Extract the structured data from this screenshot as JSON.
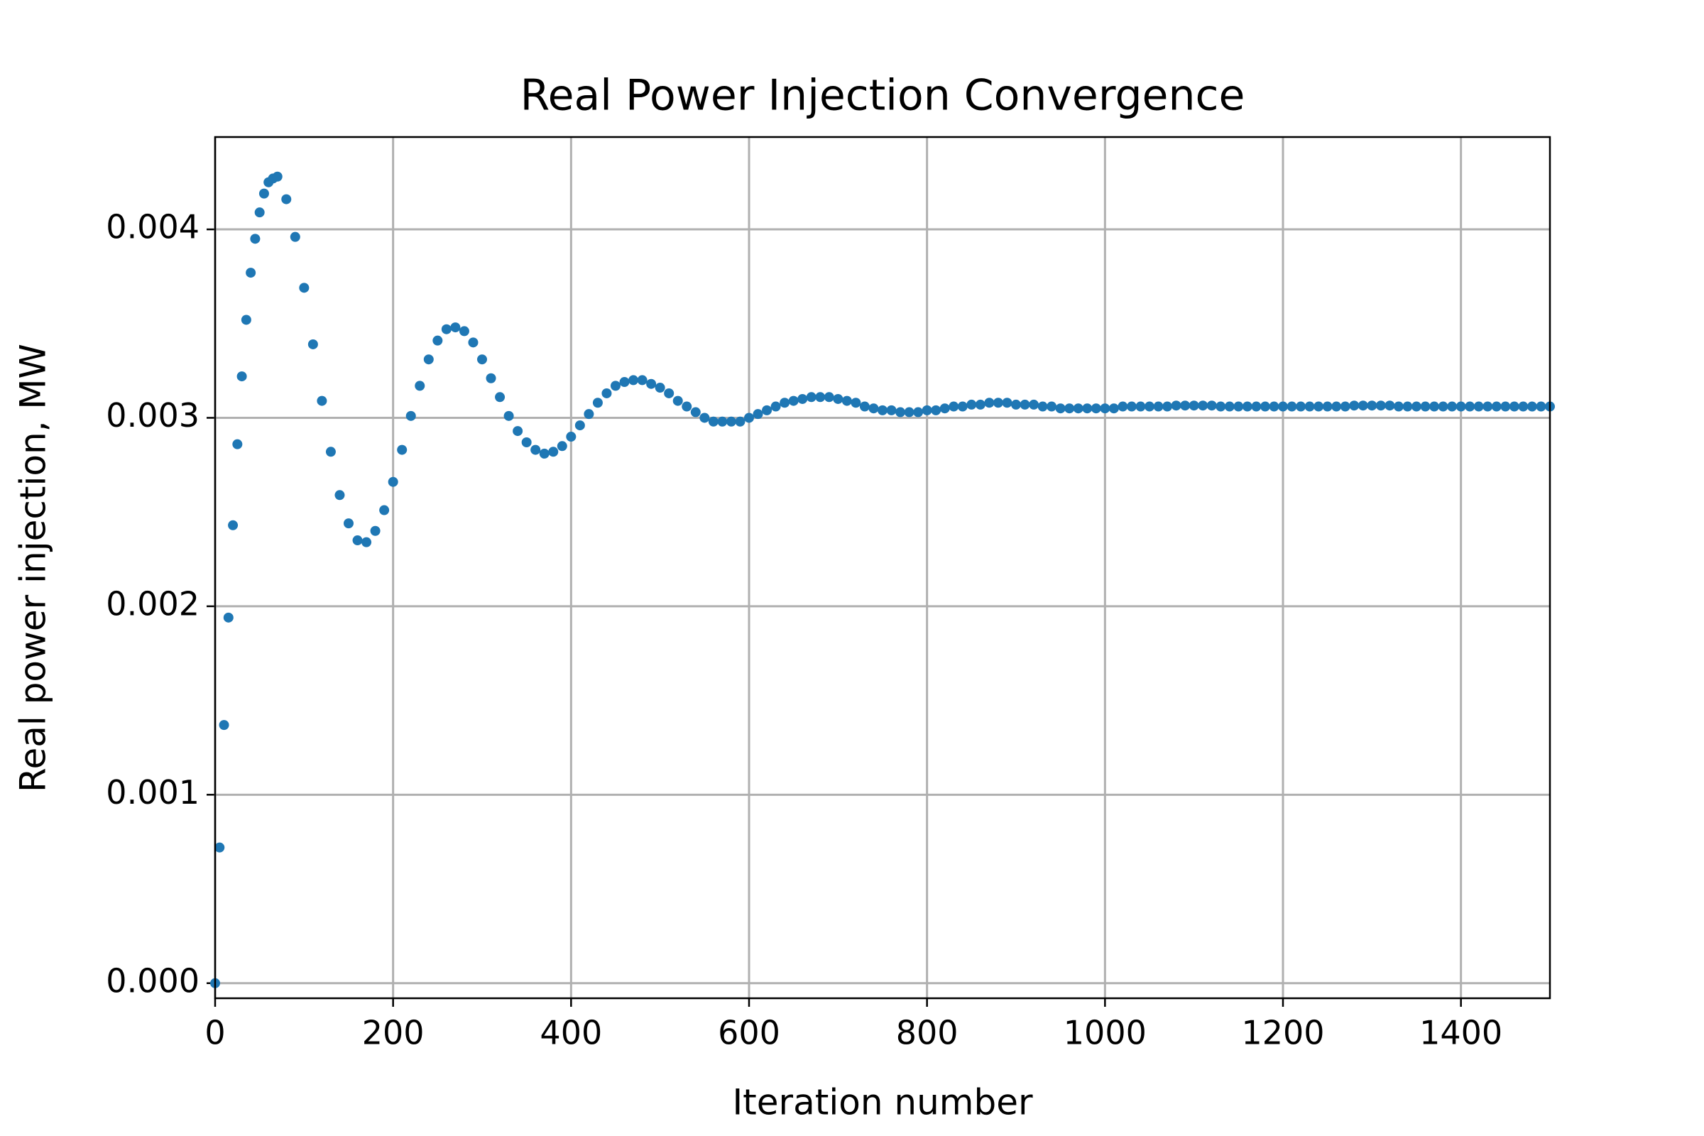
{
  "chart_data": {
    "type": "scatter",
    "title": "Real Power Injection Convergence",
    "x_label": "Iteration number",
    "y_label": "Real power injection, MW",
    "xlim": [
      0,
      1500
    ],
    "ylim": [
      -8e-05,
      0.00449
    ],
    "xticks": [
      0,
      200,
      400,
      600,
      800,
      1000,
      1200,
      1400
    ],
    "yticks": [
      {
        "value": 0,
        "label": "0.000"
      },
      0.001,
      0.002,
      0.003,
      0.004
    ],
    "grid": true,
    "series": [
      {
        "color": "#1f77b4",
        "x": [
          0,
          5,
          10,
          15,
          20,
          25,
          30,
          35,
          40,
          45,
          50,
          55,
          60,
          65,
          70,
          80,
          90,
          100,
          110,
          120,
          130,
          140,
          150,
          160,
          170,
          180,
          190,
          200,
          210,
          220,
          230,
          240,
          250,
          260,
          270,
          280,
          290,
          300,
          310,
          320,
          330,
          340,
          350,
          360,
          370,
          380,
          390,
          400,
          410,
          420,
          430,
          440,
          450,
          460,
          470,
          480,
          490,
          500,
          510,
          520,
          530,
          540,
          550,
          560,
          570,
          580,
          590,
          600,
          610,
          620,
          630,
          640,
          650,
          660,
          670,
          680,
          690,
          700,
          710,
          720,
          730,
          740,
          750,
          760,
          770,
          780,
          790,
          800,
          810,
          820,
          830,
          840,
          850,
          860,
          870,
          880,
          890,
          900,
          910,
          920,
          930,
          940,
          950,
          960,
          970,
          980,
          990,
          1000,
          1010,
          1020,
          1030,
          1040,
          1050,
          1060,
          1070,
          1080,
          1090,
          1100,
          1110,
          1120,
          1130,
          1140,
          1150,
          1160,
          1170,
          1180,
          1190,
          1200,
          1210,
          1220,
          1230,
          1240,
          1250,
          1260,
          1270,
          1280,
          1290,
          1300,
          1310,
          1320,
          1330,
          1340,
          1350,
          1360,
          1370,
          1380,
          1390,
          1400,
          1410,
          1420,
          1430,
          1440,
          1450,
          1460,
          1470,
          1480,
          1490,
          1500
        ],
        "values": [
          0,
          0.00072,
          0.00137,
          0.00194,
          0.00243,
          0.00286,
          0.00322,
          0.00352,
          0.00377,
          0.00395,
          0.00409,
          0.00419,
          0.00425,
          0.00427,
          0.00428,
          0.00416,
          0.00396,
          0.00369,
          0.00339,
          0.00309,
          0.00282,
          0.00259,
          0.00244,
          0.00235,
          0.00234,
          0.0024,
          0.00251,
          0.00266,
          0.00283,
          0.00301,
          0.00317,
          0.00331,
          0.00341,
          0.00347,
          0.00348,
          0.00346,
          0.0034,
          0.00331,
          0.00321,
          0.00311,
          0.00301,
          0.00293,
          0.00287,
          0.00283,
          0.00281,
          0.00282,
          0.00285,
          0.0029,
          0.00296,
          0.00302,
          0.00308,
          0.00313,
          0.00317,
          0.00319,
          0.0032,
          0.0032,
          0.00318,
          0.00316,
          0.00313,
          0.00309,
          0.00306,
          0.00303,
          0.003,
          0.00298,
          0.00298,
          0.00298,
          0.00298,
          0.003,
          0.00302,
          0.00304,
          0.00306,
          0.00308,
          0.00309,
          0.0031,
          0.00311,
          0.00311,
          0.00311,
          0.0031,
          0.00309,
          0.00308,
          0.00306,
          0.00305,
          0.00304,
          0.00304,
          0.00303,
          0.00303,
          0.00303,
          0.00304,
          0.00304,
          0.00305,
          0.00306,
          0.00306,
          0.00307,
          0.00307,
          0.00308,
          0.00308,
          0.00308,
          0.00307,
          0.00307,
          0.00307,
          0.00306,
          0.00306,
          0.00305,
          0.00305,
          0.00305,
          0.00305,
          0.00305,
          0.00305,
          0.00305,
          0.00306,
          0.00306,
          0.00306,
          0.00306,
          0.00306,
          0.00306,
          0.003065,
          0.003065,
          0.003065,
          0.003065,
          0.003065,
          0.00306,
          0.00306,
          0.00306,
          0.00306,
          0.00306,
          0.00306,
          0.00306,
          0.00306,
          0.00306,
          0.00306,
          0.00306,
          0.00306,
          0.00306,
          0.00306,
          0.00306,
          0.003065,
          0.003065,
          0.003065,
          0.003065,
          0.003065,
          0.00306,
          0.00306,
          0.00306,
          0.00306,
          0.00306,
          0.00306,
          0.00306,
          0.00306,
          0.00306,
          0.00306,
          0.00306,
          0.00306,
          0.00306,
          0.00306,
          0.00306,
          0.00306,
          0.00306,
          0.00306
        ]
      }
    ]
  }
}
